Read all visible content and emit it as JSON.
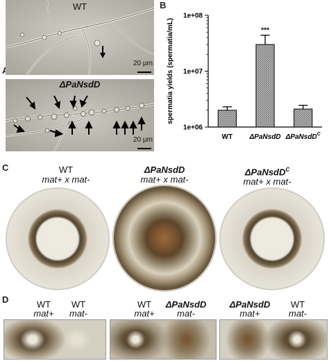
{
  "panel_a": {
    "letter": "A",
    "top_image": {
      "title": "WT",
      "scale_bar": "20 µm"
    },
    "bottom_image": {
      "title": "ΔPaNsdD",
      "scale_bar": "20 µm"
    }
  },
  "panel_b": {
    "letter": "B"
  },
  "chart_data": {
    "type": "bar",
    "categories": [
      "WT",
      "ΔPaNsdD",
      "ΔPaNsdD"
    ],
    "category_superscripts": [
      "",
      "",
      "C"
    ],
    "values": [
      2000000,
      30000000,
      2100000
    ],
    "errors": [
      300000,
      14000000,
      350000
    ],
    "ylabel": "spermatia yields (spermatia/mL)",
    "yscale": "log",
    "ylim": [
      1000000,
      100000000
    ],
    "yticks": [
      "1e+06",
      "1e+07",
      "1e+08"
    ],
    "annotations": [
      {
        "bar": 1,
        "text": "***"
      }
    ],
    "bar_fill": "crosshatch"
  },
  "panel_c": {
    "letter": "C",
    "plates": [
      {
        "genotype": "WT",
        "cross": "mat+ x mat-"
      },
      {
        "genotype": "ΔPaNsdD",
        "cross": "mat+ x mat-"
      },
      {
        "genotype": "ΔPaNsdD",
        "superscript": "C",
        "cross": "mat+ x mat-"
      }
    ]
  },
  "panel_d": {
    "letter": "D",
    "strips": [
      {
        "left_genotype": "WT",
        "left_mating": "mat+",
        "right_genotype": "WT",
        "right_mating": "mat-"
      },
      {
        "left_genotype": "WT",
        "left_mating": "mat+",
        "right_genotype": "ΔPaNsdD",
        "right_mating": "mat-"
      },
      {
        "left_genotype": "ΔPaNsdD",
        "left_mating": "mat+",
        "right_genotype": "WT",
        "right_mating": "mat-"
      }
    ]
  },
  "colors": {
    "micrograph_bg": "#b9b7ae",
    "plate_agar": "#e7e3d6",
    "mycelium_dark": "#3e3220",
    "bar_gray": "#9a9a9a"
  }
}
